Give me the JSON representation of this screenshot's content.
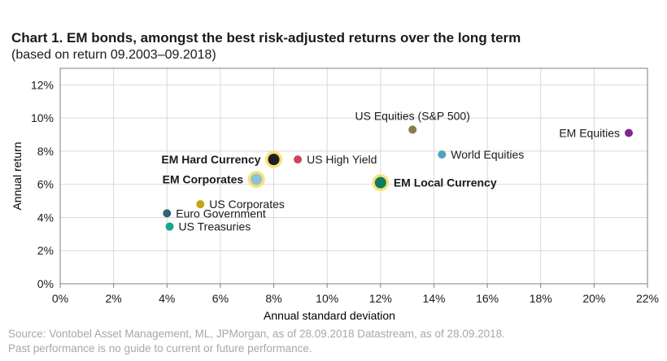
{
  "title": "Chart 1. EM bonds, amongst the best risk-adjusted returns over the long term",
  "subtitle": "(based on return 09.2003–09.2018)",
  "source_line1": "Source: Vontobel Asset Management, ML, JPMorgan, as of 28.09.2018 Datastream, as of 28.09.2018.",
  "source_line2": "Past performance is no guide to current or future performance.",
  "chart_data": {
    "type": "scatter",
    "title": "Chart 1. EM bonds, amongst the best risk-adjusted returns over the long term",
    "subtitle": "(based on return 09.2003–09.2018)",
    "xlabel": "Annual standard deviation",
    "ylabel": "Annual return",
    "xlim": [
      0,
      22
    ],
    "ylim": [
      0,
      13
    ],
    "x_ticks": [
      0,
      2,
      4,
      6,
      8,
      10,
      12,
      14,
      16,
      18,
      20,
      22
    ],
    "y_ticks": [
      0,
      2,
      4,
      6,
      8,
      10,
      12
    ],
    "x_tick_labels": [
      "0%",
      "2%",
      "4%",
      "6%",
      "8%",
      "10%",
      "12%",
      "14%",
      "16%",
      "18%",
      "20%",
      "22%"
    ],
    "y_tick_labels": [
      "0%",
      "2%",
      "4%",
      "6%",
      "8%",
      "10%",
      "12%"
    ],
    "grid": true,
    "points": [
      {
        "name": "EM Hard Currency",
        "x": 8.0,
        "y": 7.5,
        "color": "#1f1f1f",
        "halo": true,
        "bold": true,
        "label_side": "left"
      },
      {
        "name": "US High Yield",
        "x": 8.9,
        "y": 7.5,
        "color": "#d0435a",
        "halo": false,
        "bold": false,
        "label_side": "right"
      },
      {
        "name": "EM Corporates",
        "x": 7.35,
        "y": 6.3,
        "color": "#8ec1d6",
        "halo": true,
        "bold": true,
        "label_side": "left"
      },
      {
        "name": "EM Local Currency",
        "x": 12.0,
        "y": 6.1,
        "color": "#0e7a5e",
        "halo": true,
        "bold": true,
        "label_side": "right"
      },
      {
        "name": "US Equities (S&P 500)",
        "x": 13.2,
        "y": 9.3,
        "color": "#8c7a55",
        "halo": false,
        "bold": false,
        "label_side": "top"
      },
      {
        "name": "World Equities",
        "x": 14.3,
        "y": 7.8,
        "color": "#4fa3bb",
        "halo": false,
        "bold": false,
        "label_side": "right"
      },
      {
        "name": "EM Equities",
        "x": 21.3,
        "y": 9.1,
        "color": "#7a2a8c",
        "halo": false,
        "bold": false,
        "label_side": "left"
      },
      {
        "name": "US Corporates",
        "x": 5.25,
        "y": 4.8,
        "color": "#c9a218",
        "halo": false,
        "bold": false,
        "label_side": "right"
      },
      {
        "name": "Euro Government",
        "x": 4.0,
        "y": 4.25,
        "color": "#2b6577",
        "halo": false,
        "bold": false,
        "label_side": "right"
      },
      {
        "name": "US Treasuries",
        "x": 4.1,
        "y": 3.45,
        "color": "#19a58f",
        "halo": false,
        "bold": false,
        "label_side": "right"
      }
    ]
  }
}
